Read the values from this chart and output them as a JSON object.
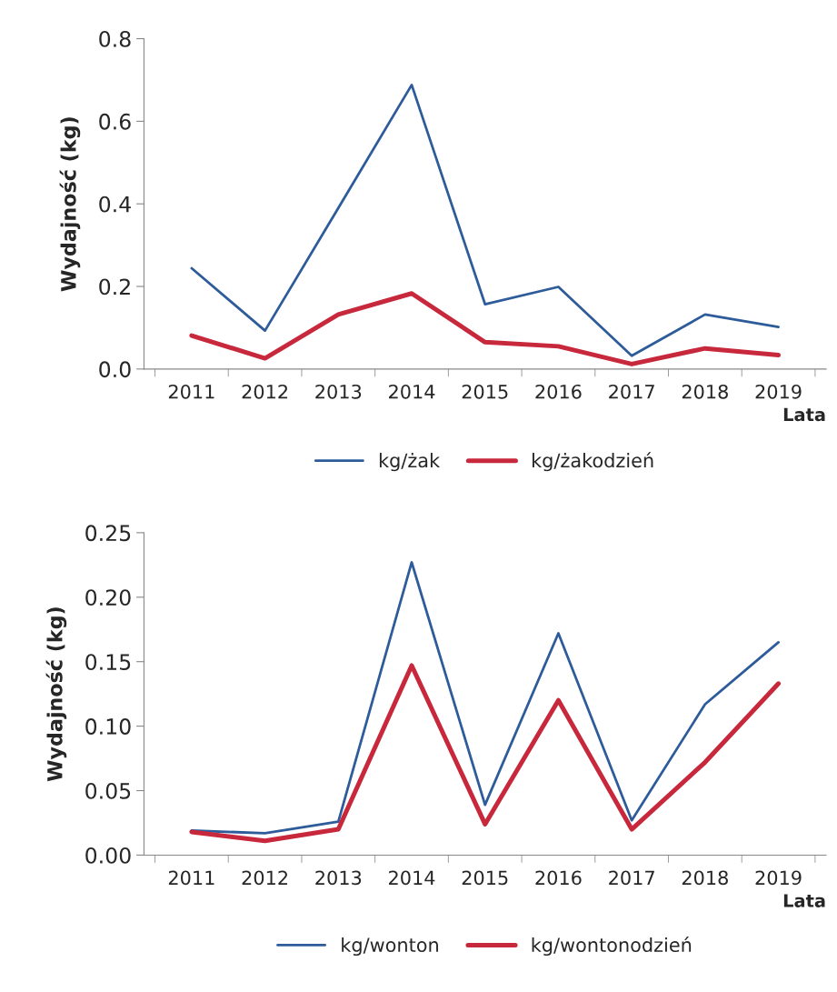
{
  "chart_data": [
    {
      "type": "line",
      "ylabel": "Wydajność (kg)",
      "xlabel": "Lata",
      "categories": [
        "2011",
        "2012",
        "2013",
        "2014",
        "2015",
        "2016",
        "2017",
        "2018",
        "2019"
      ],
      "ylim": [
        0,
        0.8
      ],
      "yticks": [
        {
          "value": 0,
          "label": "0.0"
        },
        0.2,
        0.4,
        0.6,
        0.8
      ],
      "grid": false,
      "legend": "bottom",
      "marker": "none",
      "line_style": "solid",
      "series": [
        {
          "name": "kg/żak",
          "color": "#2e5c9a",
          "values": [
            0.244,
            0.093,
            0.39,
            0.688,
            0.157,
            0.199,
            0.032,
            0.132,
            0.102
          ]
        },
        {
          "name": "kg/żakodzień",
          "color": "#c8283c",
          "values": [
            0.081,
            0.026,
            0.132,
            0.183,
            0.065,
            0.055,
            0.012,
            0.05,
            0.034
          ]
        }
      ]
    },
    {
      "type": "line",
      "ylabel": "Wydajność (kg)",
      "xlabel": "Lata",
      "categories": [
        "2011",
        "2012",
        "2013",
        "2014",
        "2015",
        "2016",
        "2017",
        "2018",
        "2019"
      ],
      "ylim": [
        0,
        0.25
      ],
      "yticks": [
        {
          "value": 0,
          "label": "0.00"
        },
        {
          "value": 0.05,
          "label": "0.05"
        },
        {
          "value": 0.1,
          "label": "0.10"
        },
        {
          "value": 0.15,
          "label": "0.15"
        },
        {
          "value": 0.2,
          "label": "0.20"
        },
        0.25
      ],
      "grid": false,
      "legend": "bottom",
      "marker": "none",
      "line_style": "solid",
      "series": [
        {
          "name": "kg/wonton",
          "color": "#2e5c9a",
          "values": [
            0.019,
            0.017,
            0.026,
            0.227,
            0.039,
            0.172,
            0.027,
            0.117,
            0.165
          ]
        },
        {
          "name": "kg/wontonodzień",
          "color": "#c8283c",
          "values": [
            0.018,
            0.011,
            0.02,
            0.147,
            0.024,
            0.12,
            0.02,
            0.072,
            0.133
          ]
        }
      ]
    }
  ]
}
